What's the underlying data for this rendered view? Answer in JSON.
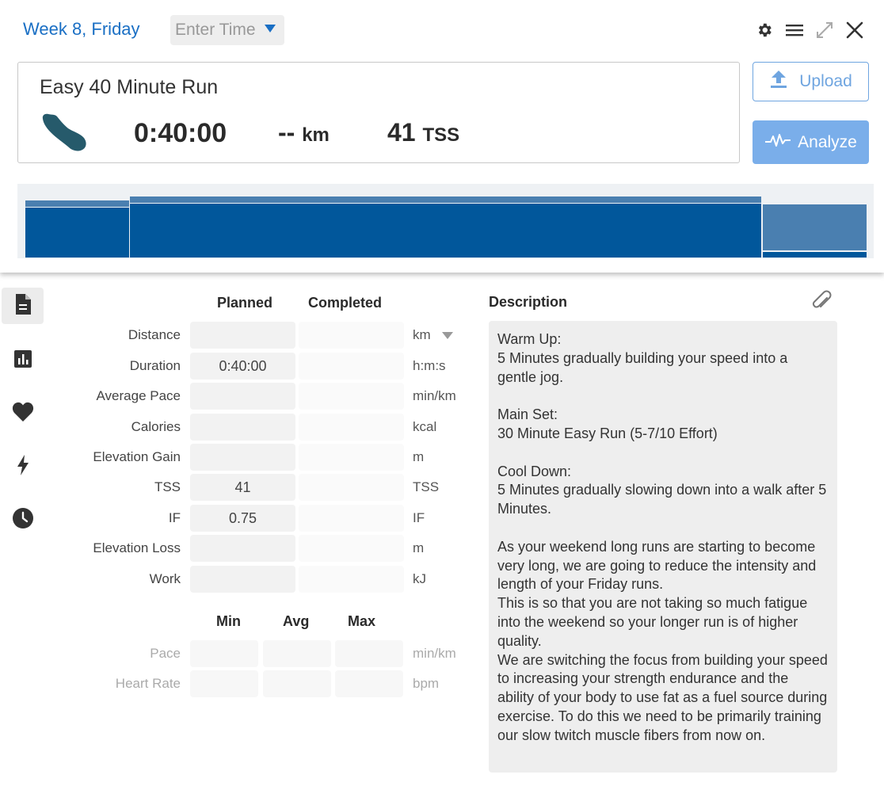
{
  "header": {
    "week_title": "Week 8, Friday",
    "time_placeholder": "Enter Time",
    "icons": [
      "gear-icon",
      "menu-icon",
      "expand-icon",
      "close-icon"
    ]
  },
  "summary": {
    "workout_title": "Easy 40 Minute Run",
    "sport_icon": "run-shoe-icon",
    "duration": "0:40:00",
    "distance_value": "--",
    "distance_unit": "km",
    "tss_value": "41",
    "tss_unit": "TSS"
  },
  "buttons": {
    "upload": "Upload",
    "analyze": "Analyze"
  },
  "colors": {
    "accent": "#1a6fc4",
    "button_light": "#7aaeea",
    "chart_dark": "#01579b",
    "chart_light": "#4a7fb0"
  },
  "sidebar": {
    "items": [
      "document-icon",
      "bar-chart-icon",
      "heart-icon",
      "lightning-icon",
      "clock-icon"
    ],
    "active_index": 0
  },
  "metrics": {
    "col_planned": "Planned",
    "col_completed": "Completed",
    "rows": [
      {
        "label": "Distance",
        "planned": "",
        "completed": "",
        "unit": "km"
      },
      {
        "label": "Duration",
        "planned": "0:40:00",
        "completed": "",
        "unit": "h:m:s"
      },
      {
        "label": "Average Pace",
        "planned": "",
        "completed": "",
        "unit": "min/km"
      },
      {
        "label": "Calories",
        "planned": "",
        "completed": "",
        "unit": "kcal"
      },
      {
        "label": "Elevation Gain",
        "planned": "",
        "completed": "",
        "unit": "m"
      },
      {
        "label": "TSS",
        "planned": "41",
        "completed": "",
        "unit": "TSS"
      },
      {
        "label": "IF",
        "planned": "0.75",
        "completed": "",
        "unit": "IF"
      },
      {
        "label": "Elevation Loss",
        "planned": "",
        "completed": "",
        "unit": "m"
      },
      {
        "label": "Work",
        "planned": "",
        "completed": "",
        "unit": "kJ"
      }
    ]
  },
  "range": {
    "col_min": "Min",
    "col_avg": "Avg",
    "col_max": "Max",
    "rows": [
      {
        "label": "Pace",
        "unit": "min/km"
      },
      {
        "label": "Heart Rate",
        "unit": "bpm"
      }
    ]
  },
  "description": {
    "heading": "Description",
    "text": "Warm Up:\n5 Minutes gradually building your speed into a gentle jog.\n\nMain Set:\n30 Minute Easy Run (5-7/10 Effort)\n\nCool Down:\n5 Minutes gradually slowing down into a walk after 5 Minutes.\n\nAs your weekend long runs are starting to become very long, we are going to reduce the intensity and length of your Friday runs.\nThis is so that you are not taking so much fatigue into the weekend so your longer run is of higher quality.\nWe are switching the focus from building your speed to increasing your strength endurance and the ability of your body to use fat as a fuel source during exercise. To do this we need to be primarily training our slow twitch muscle fibers from now on."
  }
}
